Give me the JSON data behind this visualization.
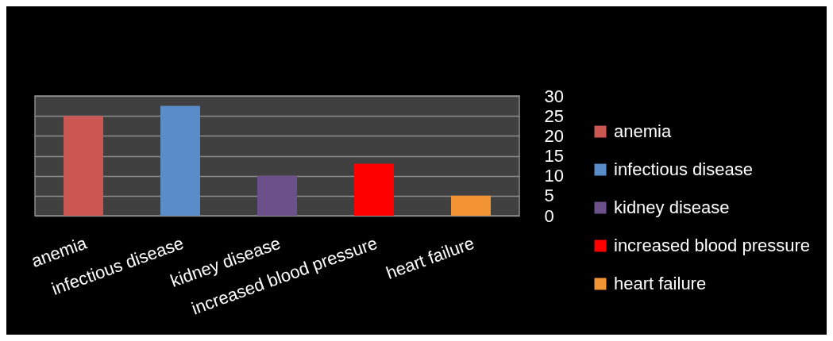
{
  "chart_data": {
    "type": "bar",
    "categories": [
      "anemia",
      "infectious disease",
      "kidney disease",
      "increased blood pressure",
      "heart failure"
    ],
    "series": [
      {
        "name": "anemia",
        "color": "#cb5753",
        "values": [
          25,
          null,
          null,
          null,
          null
        ]
      },
      {
        "name": "infectious disease",
        "color": "#5a8cc9",
        "values": [
          null,
          27.5,
          null,
          null,
          null
        ]
      },
      {
        "name": "kidney disease",
        "color": "#6b5089",
        "values": [
          null,
          null,
          10,
          null,
          null
        ]
      },
      {
        "name": "increased blood pressure",
        "color": "#ff0000",
        "values": [
          null,
          null,
          null,
          13,
          null
        ]
      },
      {
        "name": "heart failure",
        "color": "#f29433",
        "values": [
          null,
          null,
          null,
          null,
          5
        ]
      }
    ],
    "ylim": [
      0,
      30
    ],
    "yticks": [
      0,
      5,
      10,
      15,
      20,
      25,
      30
    ],
    "grid": "y",
    "legend": "right"
  }
}
